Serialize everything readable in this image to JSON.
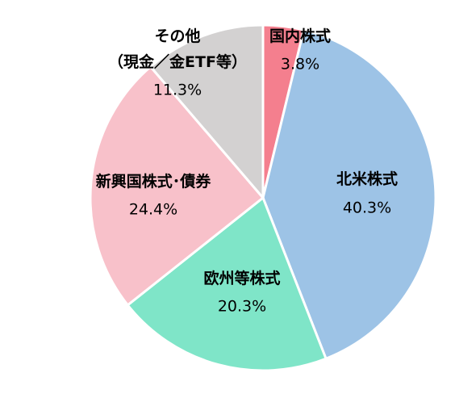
{
  "chart_data": {
    "type": "pie",
    "categories": [
      "国内株式",
      "北米株式",
      "欧州等株式",
      "新興国株式･債券",
      "その他\n（現金／金ETF等）"
    ],
    "values": [
      3.8,
      40.3,
      20.3,
      24.4,
      11.3
    ],
    "value_labels": [
      "3.8%",
      "40.3%",
      "20.3%",
      "24.4%",
      "11.3%"
    ],
    "colors": [
      "#f47f8e",
      "#9dc3e6",
      "#7fe5c8",
      "#f8c1ca",
      "#d3d1d1"
    ]
  }
}
